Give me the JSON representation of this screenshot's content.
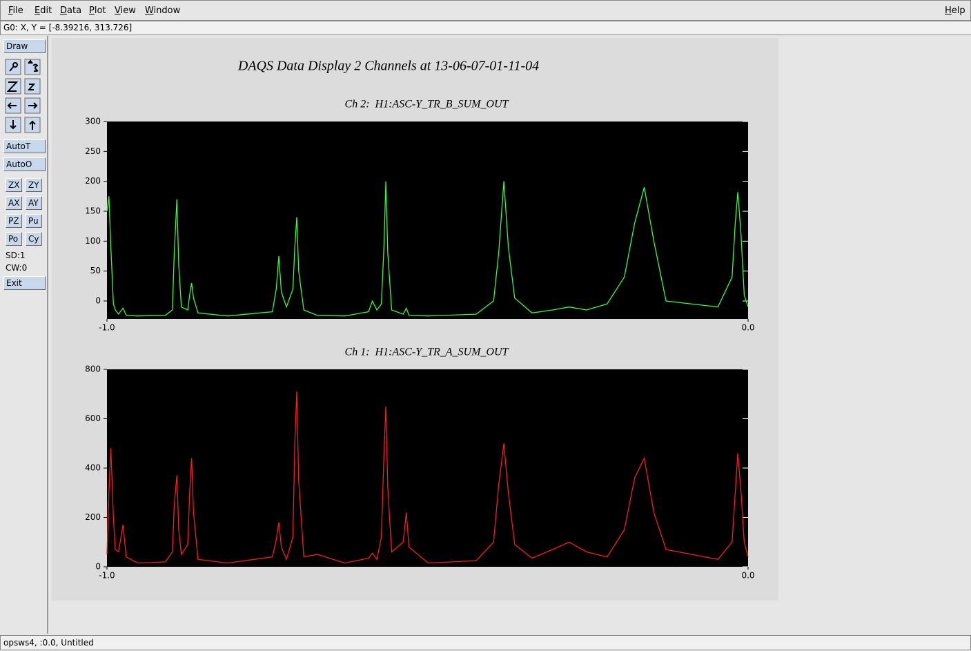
{
  "menu": [
    "File",
    "Edit",
    "Data",
    "Plot",
    "View",
    "Window"
  ],
  "help": "Help",
  "coords": "G0: X, Y = [-8.39216, 313.726]",
  "toolbar": {
    "draw": "Draw",
    "auto": [
      "AutoT",
      "AutoO"
    ],
    "buttons": [
      [
        "ZX",
        "ZY"
      ],
      [
        "AX",
        "AY"
      ],
      [
        "PZ",
        "Pu"
      ],
      [
        "Po",
        "Cy"
      ]
    ],
    "sd": "SD:1",
    "cw": "CW:0",
    "exit": "Exit"
  },
  "status": "opsws4, :0.0, Untitled",
  "plot_title": "DAQS Data Display 2 Channels at 13-06-07-01-11-04",
  "chart_data": [
    {
      "type": "line",
      "title": "Ch 2:  H1:ASC-Y_TR_B_SUM_OUT",
      "x": [
        -1.0,
        -0.997,
        -0.994,
        -0.99,
        -0.987,
        -0.982,
        -0.975,
        -0.97,
        -0.952,
        -0.909,
        -0.898,
        -0.895,
        -0.891,
        -0.888,
        -0.884,
        -0.874,
        -0.871,
        -0.868,
        -0.865,
        -0.858,
        -0.812,
        -0.742,
        -0.736,
        -0.732,
        -0.728,
        -0.72,
        -0.71,
        -0.707,
        -0.704,
        -0.701,
        -0.693,
        -0.672,
        -0.629,
        -0.592,
        -0.586,
        -0.579,
        -0.572,
        -0.568,
        -0.565,
        -0.562,
        -0.556,
        -0.538,
        -0.533,
        -0.529,
        -0.499,
        -0.424,
        -0.397,
        -0.389,
        -0.381,
        -0.374,
        -0.364,
        -0.337,
        -0.305,
        -0.279,
        -0.252,
        -0.22,
        -0.193,
        -0.177,
        -0.162,
        -0.147,
        -0.128,
        -0.047,
        -0.025,
        -0.02,
        -0.016,
        -0.011,
        -0.006,
        0.0
      ],
      "series": [
        {
          "color": "#33ff33",
          "values": [
            150,
            175,
            90,
            -5,
            -15,
            -22,
            -12,
            -24,
            -25,
            -24,
            -15,
            80,
            170,
            60,
            -10,
            -15,
            10,
            30,
            5,
            -20,
            -25,
            -18,
            20,
            75,
            15,
            -10,
            20,
            90,
            140,
            50,
            -15,
            -24,
            -25,
            -18,
            0,
            -15,
            -5,
            90,
            200,
            80,
            -15,
            -22,
            -12,
            -24,
            -25,
            -22,
            0,
            80,
            200,
            90,
            5,
            -20,
            -15,
            -10,
            -15,
            -5,
            40,
            130,
            190,
            100,
            0,
            -10,
            40,
            130,
            182,
            110,
            10,
            -10
          ]
        }
      ],
      "xlim": [
        -1,
        0
      ],
      "xticks": [
        {
          "value": -1,
          "label": "-1.0"
        },
        {
          "value": 0,
          "label": "0.0"
        }
      ],
      "ylim": [
        -30,
        300
      ],
      "yticks": [
        0,
        50,
        100,
        150,
        200,
        250,
        300
      ]
    },
    {
      "type": "line",
      "title": "Ch 1:  H1:ASC-Y_TR_A_SUM_OUT",
      "x": [
        -1.0,
        -0.997,
        -0.994,
        -0.99,
        -0.987,
        -0.982,
        -0.975,
        -0.97,
        -0.952,
        -0.909,
        -0.898,
        -0.895,
        -0.891,
        -0.888,
        -0.884,
        -0.874,
        -0.871,
        -0.868,
        -0.865,
        -0.858,
        -0.812,
        -0.742,
        -0.736,
        -0.732,
        -0.728,
        -0.72,
        -0.71,
        -0.707,
        -0.704,
        -0.701,
        -0.693,
        -0.672,
        -0.629,
        -0.592,
        -0.586,
        -0.579,
        -0.572,
        -0.568,
        -0.565,
        -0.562,
        -0.556,
        -0.538,
        -0.533,
        -0.529,
        -0.499,
        -0.424,
        -0.397,
        -0.389,
        -0.381,
        -0.374,
        -0.364,
        -0.337,
        -0.305,
        -0.279,
        -0.252,
        -0.22,
        -0.193,
        -0.177,
        -0.162,
        -0.147,
        -0.128,
        -0.047,
        -0.025,
        -0.02,
        -0.016,
        -0.011,
        -0.006,
        0.0
      ],
      "series": [
        {
          "color": "#ff1a1a",
          "values": [
            50,
            300,
            480,
            200,
            70,
            60,
            170,
            40,
            15,
            20,
            60,
            250,
            370,
            150,
            50,
            90,
            300,
            440,
            220,
            30,
            15,
            40,
            110,
            180,
            80,
            30,
            120,
            500,
            710,
            350,
            40,
            50,
            15,
            35,
            55,
            30,
            120,
            450,
            650,
            320,
            60,
            100,
            220,
            80,
            15,
            25,
            100,
            330,
            500,
            300,
            90,
            35,
            70,
            100,
            60,
            40,
            150,
            360,
            440,
            220,
            70,
            30,
            100,
            300,
            460,
            300,
            100,
            40
          ]
        }
      ],
      "xlim": [
        -1,
        0
      ],
      "xticks": [
        {
          "value": -1,
          "label": "-1.0"
        },
        {
          "value": 0,
          "label": "0.0"
        }
      ],
      "ylim": [
        0,
        800
      ],
      "yticks": [
        0,
        200,
        400,
        600,
        800
      ]
    }
  ]
}
